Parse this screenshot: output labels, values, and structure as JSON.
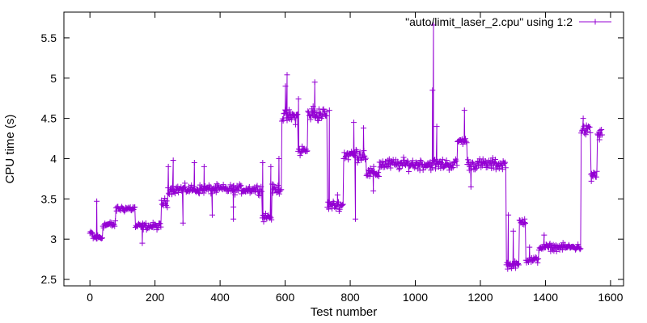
{
  "chart_data": {
    "type": "line",
    "title": "",
    "xlabel": "Test number",
    "ylabel": "CPU time (s)",
    "xlim": [
      -80,
      1640
    ],
    "ylim": [
      2.42,
      5.82
    ],
    "x_ticks": [
      0,
      200,
      400,
      600,
      800,
      1000,
      1200,
      1400,
      1600
    ],
    "y_ticks": [
      2.5,
      3,
      3.5,
      4,
      4.5,
      5,
      5.5
    ],
    "grid": false,
    "legend": {
      "position": "top-right"
    },
    "marker": "plus",
    "series": [
      {
        "name": "\"auto/limit_laser_2.cpu\" using 1:2",
        "color": "#9400d3",
        "segments": [
          {
            "x0": 0,
            "x1": 10,
            "level": 3.07,
            "jitter": 0.02
          },
          {
            "x0": 10,
            "x1": 40,
            "level": 3.02,
            "jitter": 0.03
          },
          {
            "x0": 40,
            "x1": 80,
            "level": 3.18,
            "jitter": 0.03
          },
          {
            "x0": 80,
            "x1": 140,
            "level": 3.38,
            "jitter": 0.03
          },
          {
            "x0": 140,
            "x1": 220,
            "level": 3.16,
            "jitter": 0.03
          },
          {
            "x0": 220,
            "x1": 240,
            "level": 3.45,
            "jitter": 0.04
          },
          {
            "x0": 240,
            "x1": 530,
            "level": 3.62,
            "jitter": 0.04
          },
          {
            "x0": 530,
            "x1": 560,
            "level": 3.28,
            "jitter": 0.04
          },
          {
            "x0": 560,
            "x1": 590,
            "level": 3.62,
            "jitter": 0.04
          },
          {
            "x0": 590,
            "x1": 640,
            "level": 4.52,
            "jitter": 0.06
          },
          {
            "x0": 640,
            "x1": 670,
            "level": 4.1,
            "jitter": 0.05
          },
          {
            "x0": 670,
            "x1": 730,
            "level": 4.55,
            "jitter": 0.06
          },
          {
            "x0": 730,
            "x1": 780,
            "level": 3.42,
            "jitter": 0.04
          },
          {
            "x0": 780,
            "x1": 850,
            "level": 4.05,
            "jitter": 0.06
          },
          {
            "x0": 850,
            "x1": 890,
            "level": 3.82,
            "jitter": 0.05
          },
          {
            "x0": 890,
            "x1": 1130,
            "level": 3.93,
            "jitter": 0.05
          },
          {
            "x0": 1130,
            "x1": 1160,
            "level": 4.22,
            "jitter": 0.03
          },
          {
            "x0": 1160,
            "x1": 1280,
            "level": 3.93,
            "jitter": 0.05
          },
          {
            "x0": 1280,
            "x1": 1320,
            "level": 2.68,
            "jitter": 0.03
          },
          {
            "x0": 1320,
            "x1": 1340,
            "level": 3.22,
            "jitter": 0.03
          },
          {
            "x0": 1340,
            "x1": 1380,
            "level": 2.74,
            "jitter": 0.03
          },
          {
            "x0": 1380,
            "x1": 1510,
            "level": 2.9,
            "jitter": 0.03
          },
          {
            "x0": 1510,
            "x1": 1540,
            "level": 4.35,
            "jitter": 0.05
          },
          {
            "x0": 1540,
            "x1": 1560,
            "level": 3.8,
            "jitter": 0.05
          },
          {
            "x0": 1560,
            "x1": 1575,
            "level": 4.3,
            "jitter": 0.05
          }
        ],
        "spikes": [
          {
            "x": 20,
            "y": 3.47
          },
          {
            "x": 160,
            "y": 2.95
          },
          {
            "x": 240,
            "y": 3.9
          },
          {
            "x": 255,
            "y": 3.98
          },
          {
            "x": 285,
            "y": 3.2
          },
          {
            "x": 320,
            "y": 3.95
          },
          {
            "x": 350,
            "y": 3.9
          },
          {
            "x": 375,
            "y": 3.3
          },
          {
            "x": 440,
            "y": 3.4
          },
          {
            "x": 440,
            "y": 3.25
          },
          {
            "x": 530,
            "y": 3.95
          },
          {
            "x": 555,
            "y": 3.9
          },
          {
            "x": 580,
            "y": 4.0
          },
          {
            "x": 600,
            "y": 4.9
          },
          {
            "x": 605,
            "y": 5.04
          },
          {
            "x": 640,
            "y": 4.74
          },
          {
            "x": 685,
            "y": 4.65
          },
          {
            "x": 690,
            "y": 4.95
          },
          {
            "x": 735,
            "y": 4.6
          },
          {
            "x": 760,
            "y": 3.55
          },
          {
            "x": 810,
            "y": 4.45
          },
          {
            "x": 815,
            "y": 3.25
          },
          {
            "x": 840,
            "y": 4.38
          },
          {
            "x": 870,
            "y": 3.6
          },
          {
            "x": 1052,
            "y": 4.85
          },
          {
            "x": 1055,
            "y": 5.66
          },
          {
            "x": 1065,
            "y": 4.4
          },
          {
            "x": 1150,
            "y": 4.6
          },
          {
            "x": 1170,
            "y": 3.65
          },
          {
            "x": 1285,
            "y": 3.3
          },
          {
            "x": 1300,
            "y": 3.1
          },
          {
            "x": 1335,
            "y": 3.25
          },
          {
            "x": 1350,
            "y": 2.9
          },
          {
            "x": 1395,
            "y": 3.05
          },
          {
            "x": 1515,
            "y": 4.5
          },
          {
            "x": 1540,
            "y": 3.72
          }
        ]
      }
    ]
  }
}
